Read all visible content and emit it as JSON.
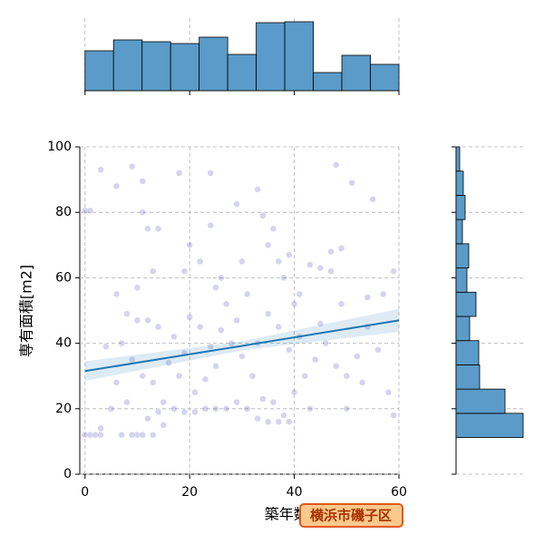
{
  "chart_data": {
    "type": "jointplot",
    "xlabel": "築年数[年]",
    "ylabel": "専有面積[m2]",
    "annotation": "横浜市磯子区",
    "xlim": [
      -1,
      60
    ],
    "ylim": [
      0,
      100
    ],
    "xticks": [
      0,
      20,
      40,
      60
    ],
    "yticks": [
      0,
      20,
      40,
      60,
      80,
      100
    ],
    "grid": true,
    "series": [
      {
        "color": "#3b3bc0",
        "x": [
          0,
          1,
          2,
          3,
          0,
          1,
          3,
          6,
          9,
          11,
          18,
          24,
          29,
          33,
          48,
          51,
          55,
          59,
          57,
          54,
          47,
          45,
          43,
          41,
          40,
          38,
          37,
          35,
          34,
          36,
          39,
          30,
          26,
          25,
          24,
          22,
          20,
          19,
          14,
          12,
          11,
          10,
          13,
          8,
          6,
          10,
          12,
          14,
          7,
          4,
          9,
          11,
          13,
          15,
          17,
          19,
          21,
          23,
          25,
          27,
          29,
          31,
          33,
          35,
          37,
          38,
          39,
          36,
          34,
          32,
          30,
          28,
          26,
          24,
          22,
          20,
          18,
          16,
          14,
          12,
          10,
          9,
          11,
          8,
          6,
          5,
          3,
          42,
          44,
          46,
          48,
          50,
          52,
          54,
          56,
          58,
          59,
          50,
          53,
          49,
          45,
          41,
          39,
          37,
          35,
          33,
          31,
          29,
          27,
          25,
          23,
          21,
          19,
          17,
          15,
          13,
          7,
          40,
          43,
          47,
          49
        ],
        "values": [
          12,
          12,
          12,
          12,
          80.5,
          80.5,
          93,
          88,
          94,
          89.5,
          92,
          92,
          82.5,
          87,
          94.5,
          89,
          84,
          62,
          55,
          54,
          62,
          63,
          64,
          55,
          52,
          60,
          65,
          70,
          79,
          75,
          67,
          65,
          60,
          57,
          76,
          65,
          70,
          62,
          75,
          75,
          80,
          57,
          62,
          49,
          55,
          47,
          47,
          45,
          40,
          39,
          35,
          30,
          28,
          22,
          20,
          19,
          19,
          20,
          20,
          20,
          22,
          20,
          17,
          16,
          16,
          18,
          16,
          22,
          23,
          30,
          36,
          40,
          44,
          39,
          45,
          48,
          30,
          34,
          19,
          17,
          12,
          12,
          12,
          22,
          28,
          20,
          14,
          30,
          35,
          40,
          33,
          30,
          36,
          45,
          38,
          25,
          18,
          20,
          28,
          52,
          46,
          42,
          38,
          45,
          49,
          40,
          55,
          47,
          52,
          33,
          29,
          25,
          37,
          42,
          15,
          12,
          12,
          25,
          20,
          68,
          69
        ]
      }
    ],
    "regression": {
      "color": "#1f77b4",
      "x": [
        0,
        30,
        60
      ],
      "values": [
        31.5,
        39.2,
        47
      ],
      "ci_lower": [
        28.5,
        37.8,
        43.5
      ],
      "ci_upper": [
        34.5,
        40.6,
        50.5
      ]
    },
    "marginal_x": {
      "color": "#5a9bc9",
      "bins": [
        0,
        5.45,
        10.91,
        16.36,
        21.82,
        27.27,
        32.73,
        38.18,
        43.64,
        49.09,
        54.55,
        60
      ],
      "counts": [
        44,
        56,
        54,
        52,
        59,
        40,
        75,
        76,
        20,
        39,
        29
      ],
      "countlim": [
        0,
        80
      ]
    },
    "marginal_y": {
      "color": "#5a9bc9",
      "bins": [
        11.2,
        18.6,
        26,
        33.4,
        40.8,
        48.2,
        55.6,
        63,
        70.4,
        77.8,
        85.2,
        92.6,
        100
      ],
      "counts": [
        74,
        54,
        26,
        25,
        15,
        22,
        12,
        14,
        7,
        10,
        8,
        4
      ],
      "countlim": [
        0,
        77
      ]
    }
  }
}
